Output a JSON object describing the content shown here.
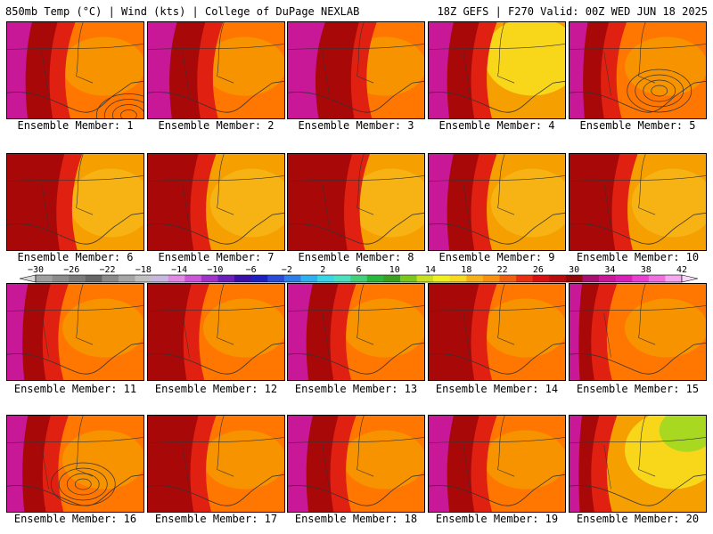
{
  "header": {
    "left_title": "850mb Temp (°C) | Wind (kts) | College of DuPage NEXLAB",
    "right_title": "18Z GEFS | F270 Valid: 00Z WED JUN 18 2025"
  },
  "members": [
    {
      "label": "Ensemble Member: 1"
    },
    {
      "label": "Ensemble Member: 2"
    },
    {
      "label": "Ensemble Member: 3"
    },
    {
      "label": "Ensemble Member: 4"
    },
    {
      "label": "Ensemble Member: 5"
    },
    {
      "label": "Ensemble Member: 6"
    },
    {
      "label": "Ensemble Member: 7"
    },
    {
      "label": "Ensemble Member: 8"
    },
    {
      "label": "Ensemble Member: 9"
    },
    {
      "label": "Ensemble Member: 10"
    },
    {
      "label": "Ensemble Member: 11"
    },
    {
      "label": "Ensemble Member: 12"
    },
    {
      "label": "Ensemble Member: 13"
    },
    {
      "label": "Ensemble Member: 14"
    },
    {
      "label": "Ensemble Member: 15"
    },
    {
      "label": "Ensemble Member: 16"
    },
    {
      "label": "Ensemble Member: 17"
    },
    {
      "label": "Ensemble Member: 18"
    },
    {
      "label": "Ensemble Member: 19"
    },
    {
      "label": "Ensemble Member: 20"
    }
  ],
  "colorbar": {
    "labels": [
      "−30",
      "−26",
      "−22",
      "−18",
      "−14",
      "−10",
      "−6",
      "−2",
      "2",
      "6",
      "10",
      "14",
      "18",
      "22",
      "26",
      "30",
      "34",
      "38",
      "42"
    ],
    "colors": [
      "#a0a0a0",
      "#8c8c8c",
      "#7a7a7a",
      "#666666",
      "#8a8a8a",
      "#a6a6a6",
      "#c0c0c0",
      "#c8b8e0",
      "#e08ae6",
      "#cc55d8",
      "#a033c8",
      "#6a1fb8",
      "#3a10a8",
      "#2020c0",
      "#2a4ad8",
      "#2f7de8",
      "#2fb0f0",
      "#3ad6e6",
      "#4ae0c0",
      "#44d07a",
      "#2ab83c",
      "#3aa020",
      "#7ac81e",
      "#c8e020",
      "#f0f020",
      "#f8d820",
      "#f8b018",
      "#f89010",
      "#f06010",
      "#e83010",
      "#d81010",
      "#b80c0c",
      "#900808",
      "#a81070",
      "#c81898",
      "#d820b8",
      "#e840d0",
      "#f070e0",
      "#f8a8f0"
    ]
  },
  "colors": {
    "hot": "#f5a000",
    "warm": "#ff7700",
    "red": "#e02010",
    "darkred": "#a80808",
    "magenta": "#c81898",
    "yellow": "#f8e020",
    "green": "#a8d820"
  }
}
